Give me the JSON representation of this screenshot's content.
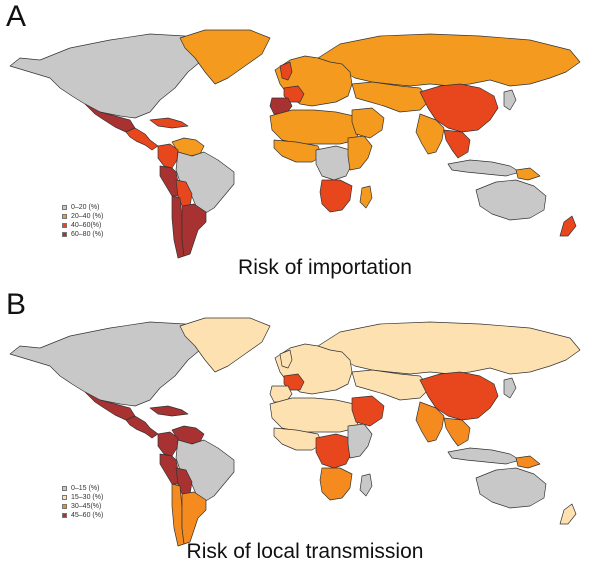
{
  "panels": [
    {
      "letter": "A",
      "caption": "Risk of importation",
      "legend": [
        {
          "label": "0–20 (%)",
          "color": "#c8c8c8"
        },
        {
          "label": "20–40 (%)",
          "color": "#f39a1f"
        },
        {
          "label": "40–60(%)",
          "color": "#e8471e"
        },
        {
          "label": "60–80 (%)",
          "color": "#a83232"
        }
      ]
    },
    {
      "letter": "B",
      "caption": "Risk of local transmission",
      "legend": [
        {
          "label": "0–15 (%)",
          "color": "#c8c8c8"
        },
        {
          "label": "15–30 (%)",
          "color": "#fde1b0"
        },
        {
          "label": "30–45(%)",
          "color": "#f58a1f"
        },
        {
          "label": "45–60 (%)",
          "color": "#a83232"
        }
      ]
    }
  ],
  "colors": {
    "grey": "#c8c8c8",
    "orange": "#f39a1f",
    "red_orange": "#e8471e",
    "dark_red": "#a83232",
    "pale": "#fde1b0",
    "mid_orange": "#f58a1f",
    "border": "#333333"
  },
  "regions": {
    "A": {
      "north_america": "grey",
      "greenland": "orange",
      "mexico": "dark_red",
      "central_america": "red_orange",
      "caribbean": "red_orange",
      "colombia": "red_orange",
      "venezuela": "orange",
      "brazil": "grey",
      "peru": "dark_red",
      "bolivia": "red_orange",
      "argentina": "dark_red",
      "chile": "dark_red",
      "europe": "orange",
      "uk": "red_orange",
      "france": "red_orange",
      "spain": "dark_red",
      "russia": "orange",
      "central_asia": "orange",
      "china": "red_orange",
      "india": "orange",
      "se_asia": "red_orange",
      "indonesia": "grey",
      "north_africa": "orange",
      "west_africa": "orange",
      "central_africa": "grey",
      "east_africa": "orange",
      "southern_africa": "red_orange",
      "madagascar": "orange",
      "arabia": "orange",
      "australia": "grey",
      "new_zealand": "red_orange",
      "japan": "grey",
      "png": "orange"
    },
    "B": {
      "north_america": "grey",
      "greenland": "pale",
      "mexico": "dark_red",
      "central_america": "dark_red",
      "caribbean": "dark_red",
      "colombia": "dark_red",
      "venezuela": "dark_red",
      "brazil": "grey",
      "peru": "dark_red",
      "bolivia": "dark_red",
      "argentina": "mid_orange",
      "chile": "mid_orange",
      "europe": "pale",
      "uk": "pale",
      "france": "red_orange",
      "spain": "pale",
      "russia": "pale",
      "central_asia": "pale",
      "china": "red_orange",
      "india": "mid_orange",
      "se_asia": "mid_orange",
      "indonesia": "grey",
      "north_africa": "pale",
      "west_africa": "pale",
      "central_africa": "red_orange",
      "east_africa": "grey",
      "southern_africa": "mid_orange",
      "madagascar": "grey",
      "arabia": "red_orange",
      "australia": "grey",
      "new_zealand": "pale",
      "japan": "grey",
      "png": "mid_orange"
    }
  }
}
